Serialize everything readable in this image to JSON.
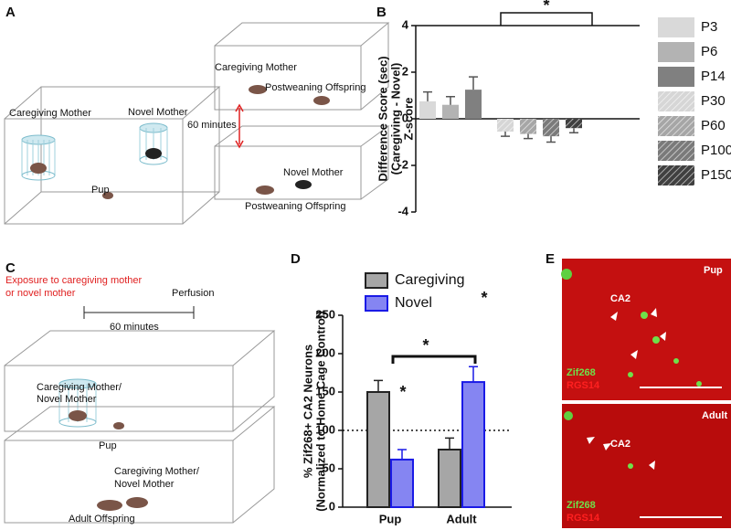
{
  "panels": {
    "a": {
      "label": "A",
      "texts": [
        "Caregiving Mother",
        "Novel Mother",
        "Pup",
        "Caregiving Mother",
        "Postweaning Offspring",
        "60 minutes",
        "Novel Mother",
        "Postweaning Offspring"
      ]
    },
    "b": {
      "label": "B"
    },
    "c": {
      "label": "C",
      "texts": [
        "Exposure to caregiving mother",
        "or novel mother",
        "Perfusion",
        "60 minutes",
        "Caregiving Mother/",
        "Novel Mother",
        "Pup",
        "Caregiving Mother/",
        "Novel Mother",
        "Adult Offspring"
      ]
    },
    "d": {
      "label": "D"
    },
    "e": {
      "label": "E",
      "texts": [
        "Pup",
        "CA2",
        "Zif268",
        "RGS14",
        "Adult",
        "CA2",
        "Zif268",
        "RGS14"
      ]
    }
  },
  "chart_data": [
    {
      "type": "bar",
      "ylabel": [
        "Difference Score (sec)",
        "(Caregiving - Novel)",
        "Z-score"
      ],
      "categories": [
        "P3",
        "P6",
        "P14",
        "P30",
        "P60",
        "P100",
        "P150"
      ],
      "values": [
        0.75,
        0.6,
        1.25,
        -0.55,
        -0.65,
        -0.75,
        -0.4
      ],
      "errors": [
        0.4,
        0.35,
        0.55,
        0.2,
        0.2,
        0.25,
        0.2
      ],
      "colors": [
        "#d9d9d9",
        "#b3b3b3",
        "#808080",
        "#d6d6d6",
        "#a6a6a6",
        "#7a7a7a",
        "#404040"
      ],
      "hatch": [
        false,
        false,
        false,
        true,
        true,
        true,
        true
      ],
      "ylim": [
        -4,
        4
      ],
      "yticks": [
        -4,
        -2,
        0,
        2,
        4
      ],
      "annotations": [
        "*"
      ],
      "legend": "right"
    },
    {
      "type": "bar",
      "ylabel": [
        "% Zif268+ CA2 Neurons",
        "(Normalized to Home Cage Control)"
      ],
      "categories": [
        "Pup",
        "Adult"
      ],
      "series": [
        {
          "name": "Caregiving",
          "color": "#a6a6a6",
          "edgecolor": "#222222",
          "values": [
            150,
            75
          ],
          "errors": [
            15,
            15
          ]
        },
        {
          "name": "Novel",
          "color": "#8585f2",
          "edgecolor": "#1a1ae6",
          "values": [
            62,
            163
          ],
          "errors": [
            13,
            20
          ]
        }
      ],
      "ylim": [
        0,
        250
      ],
      "yticks": [
        0,
        50,
        100,
        150,
        200,
        250
      ],
      "reference_line": 100,
      "annotations": [
        "*",
        "*",
        "*"
      ],
      "legend": "top-left"
    }
  ]
}
